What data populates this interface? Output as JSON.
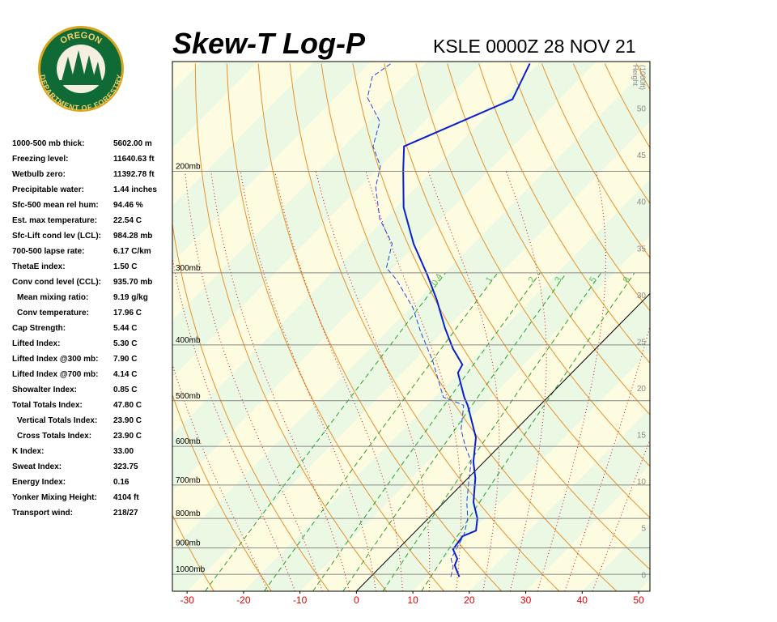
{
  "logo": {
    "top": "OREGON",
    "bottom": "DEPARTMENT OF FORESTRY"
  },
  "header": {
    "title": "Skew-T Log-P",
    "station": "KSLE 0000Z 28 NOV 21"
  },
  "indices": [
    [
      "1000-500 mb thick:",
      "5602.00 m"
    ],
    [
      "Freezing level:",
      "11640.63 ft"
    ],
    [
      "Wetbulb zero:",
      "11392.78 ft"
    ],
    [
      "Precipitable water:",
      "1.44 inches"
    ],
    [
      "Sfc-500 mean rel hum:",
      "94.46 %"
    ],
    [
      "Est. max temperature:",
      "22.54 C"
    ],
    [
      "Sfc-Lift cond lev (LCL):",
      "984.28 mb"
    ],
    [
      "700-500 lapse rate:",
      "6.17 C/km"
    ],
    [
      "ThetaE index:",
      "1.50 C"
    ],
    [
      "Conv cond level (CCL):",
      "935.70 mb"
    ],
    [
      "Mean mixing ratio:",
      "9.19 g/kg"
    ],
    [
      "Conv temperature:",
      "17.96 C"
    ],
    [
      "Cap Strength:",
      "5.44 C"
    ],
    [
      "Lifted Index:",
      "5.30 C"
    ],
    [
      "Lifted Index @300 mb:",
      "7.90 C"
    ],
    [
      "Lifted Index @700 mb:",
      "4.14 C"
    ],
    [
      "Showalter Index:",
      "0.85 C"
    ],
    [
      "Total Totals Index:",
      "47.80 C"
    ],
    [
      "Vertical Totals Index:",
      "23.90 C"
    ],
    [
      "Cross Totals Index:",
      "23.90 C"
    ],
    [
      "K Index:",
      "33.00"
    ],
    [
      "Sweat Index:",
      "323.75"
    ],
    [
      "Energy Index:",
      "0.16"
    ],
    [
      "Yonker Mixing Height:",
      "4104 ft"
    ],
    [
      "Transport wind:",
      "218/27"
    ]
  ],
  "chart_data": {
    "type": "skewt",
    "xlim": [
      -32.6,
      52
    ],
    "xticks": [
      -30,
      -20,
      -10,
      0,
      10,
      20,
      30,
      40,
      50
    ],
    "ylim": [
      1070,
      129
    ],
    "log_y": true,
    "yticks": [
      {
        "value": 1000,
        "label": "1000mb"
      },
      {
        "value": 900,
        "label": "900mb"
      },
      {
        "value": 800,
        "label": "800mb"
      },
      {
        "value": 700,
        "label": "700mb"
      },
      {
        "value": 600,
        "label": "600mb"
      },
      {
        "value": 500,
        "label": "500mb"
      },
      {
        "value": 400,
        "label": "400mb"
      },
      {
        "value": 300,
        "label": "300mb"
      },
      {
        "value": 200,
        "label": "200mb"
      }
    ],
    "y2lim": [
      -1.8,
      55
    ],
    "y2ticks": [
      0,
      5,
      10,
      15,
      20,
      25,
      30,
      35,
      40,
      45,
      50
    ],
    "y2label": [
      "Height",
      "(1000ft)"
    ],
    "mixing_ratios": [
      0.4,
      1,
      2,
      3,
      5,
      8
    ],
    "series": [
      {
        "color": "#0a1fd0",
        "dashed": false,
        "x": [
          15.7,
          12.9,
          12.2,
          9.8,
          9.2,
          10.6,
          8.7,
          5.2,
          1.3,
          -1.9,
          -5.7,
          -12.8,
          -14.8,
          -20.2,
          -20.8,
          -25.3,
          -30.3,
          -36.7,
          -42.6,
          -50.6,
          -58.7,
          -65.3,
          -69.3,
          -58.3,
          -61.5
        ],
        "values": [
          1010,
          965,
          940,
          905,
          859,
          840,
          800,
          750,
          681,
          638,
          579,
          509,
          493,
          447,
          433,
          406,
          374,
          334,
          303,
          267,
          231,
          199,
          181,
          150,
          130
        ]
      },
      {
        "color": "#2a3fe0",
        "dashed": true,
        "x": [
          14.2,
          12.9,
          11.1,
          9.2,
          7.0,
          4.0,
          0.2,
          -2.3,
          -6.2,
          -9.7,
          -13.5,
          -18.5,
          -26.8,
          -33.9,
          -39.5,
          -47.4,
          -51.2,
          -54.4,
          -60.9,
          -67.2,
          -70.0,
          -74.8,
          -77.9,
          -84.3,
          -87.1,
          -86.1
        ],
        "values": [
          1010,
          971,
          940,
          854,
          800,
          750,
          681,
          638,
          598,
          561,
          509,
          493,
          426,
          380,
          345,
          308,
          294,
          267,
          242,
          213,
          196,
          181,
          164,
          149,
          137,
          130
        ]
      }
    ]
  }
}
